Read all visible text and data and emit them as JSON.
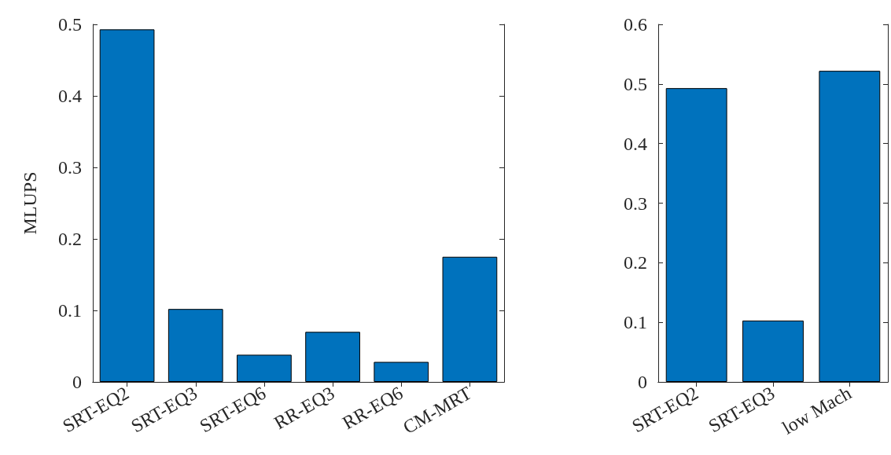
{
  "chart_data": [
    {
      "type": "bar",
      "ylabel": "MLUPS",
      "categories": [
        "SRT-EQ2",
        "SRT-EQ3",
        "SRT-EQ6",
        "RR-EQ3",
        "RR-EQ6",
        "CM-MRT"
      ],
      "values": [
        0.493,
        0.102,
        0.038,
        0.07,
        0.028,
        0.175
      ],
      "color": "#0072bd",
      "ylim": [
        0,
        0.5
      ],
      "yticks": [
        0,
        0.1,
        0.2,
        0.3,
        0.4,
        0.5
      ]
    },
    {
      "type": "bar",
      "categories": [
        "SRT-EQ2",
        "SRT-EQ3",
        "low Mach"
      ],
      "values": [
        0.493,
        0.103,
        0.522
      ],
      "color": "#0072bd",
      "ylim": [
        0,
        0.6
      ],
      "yticks": [
        0,
        0.1,
        0.2,
        0.3,
        0.4,
        0.5,
        0.6
      ]
    }
  ]
}
